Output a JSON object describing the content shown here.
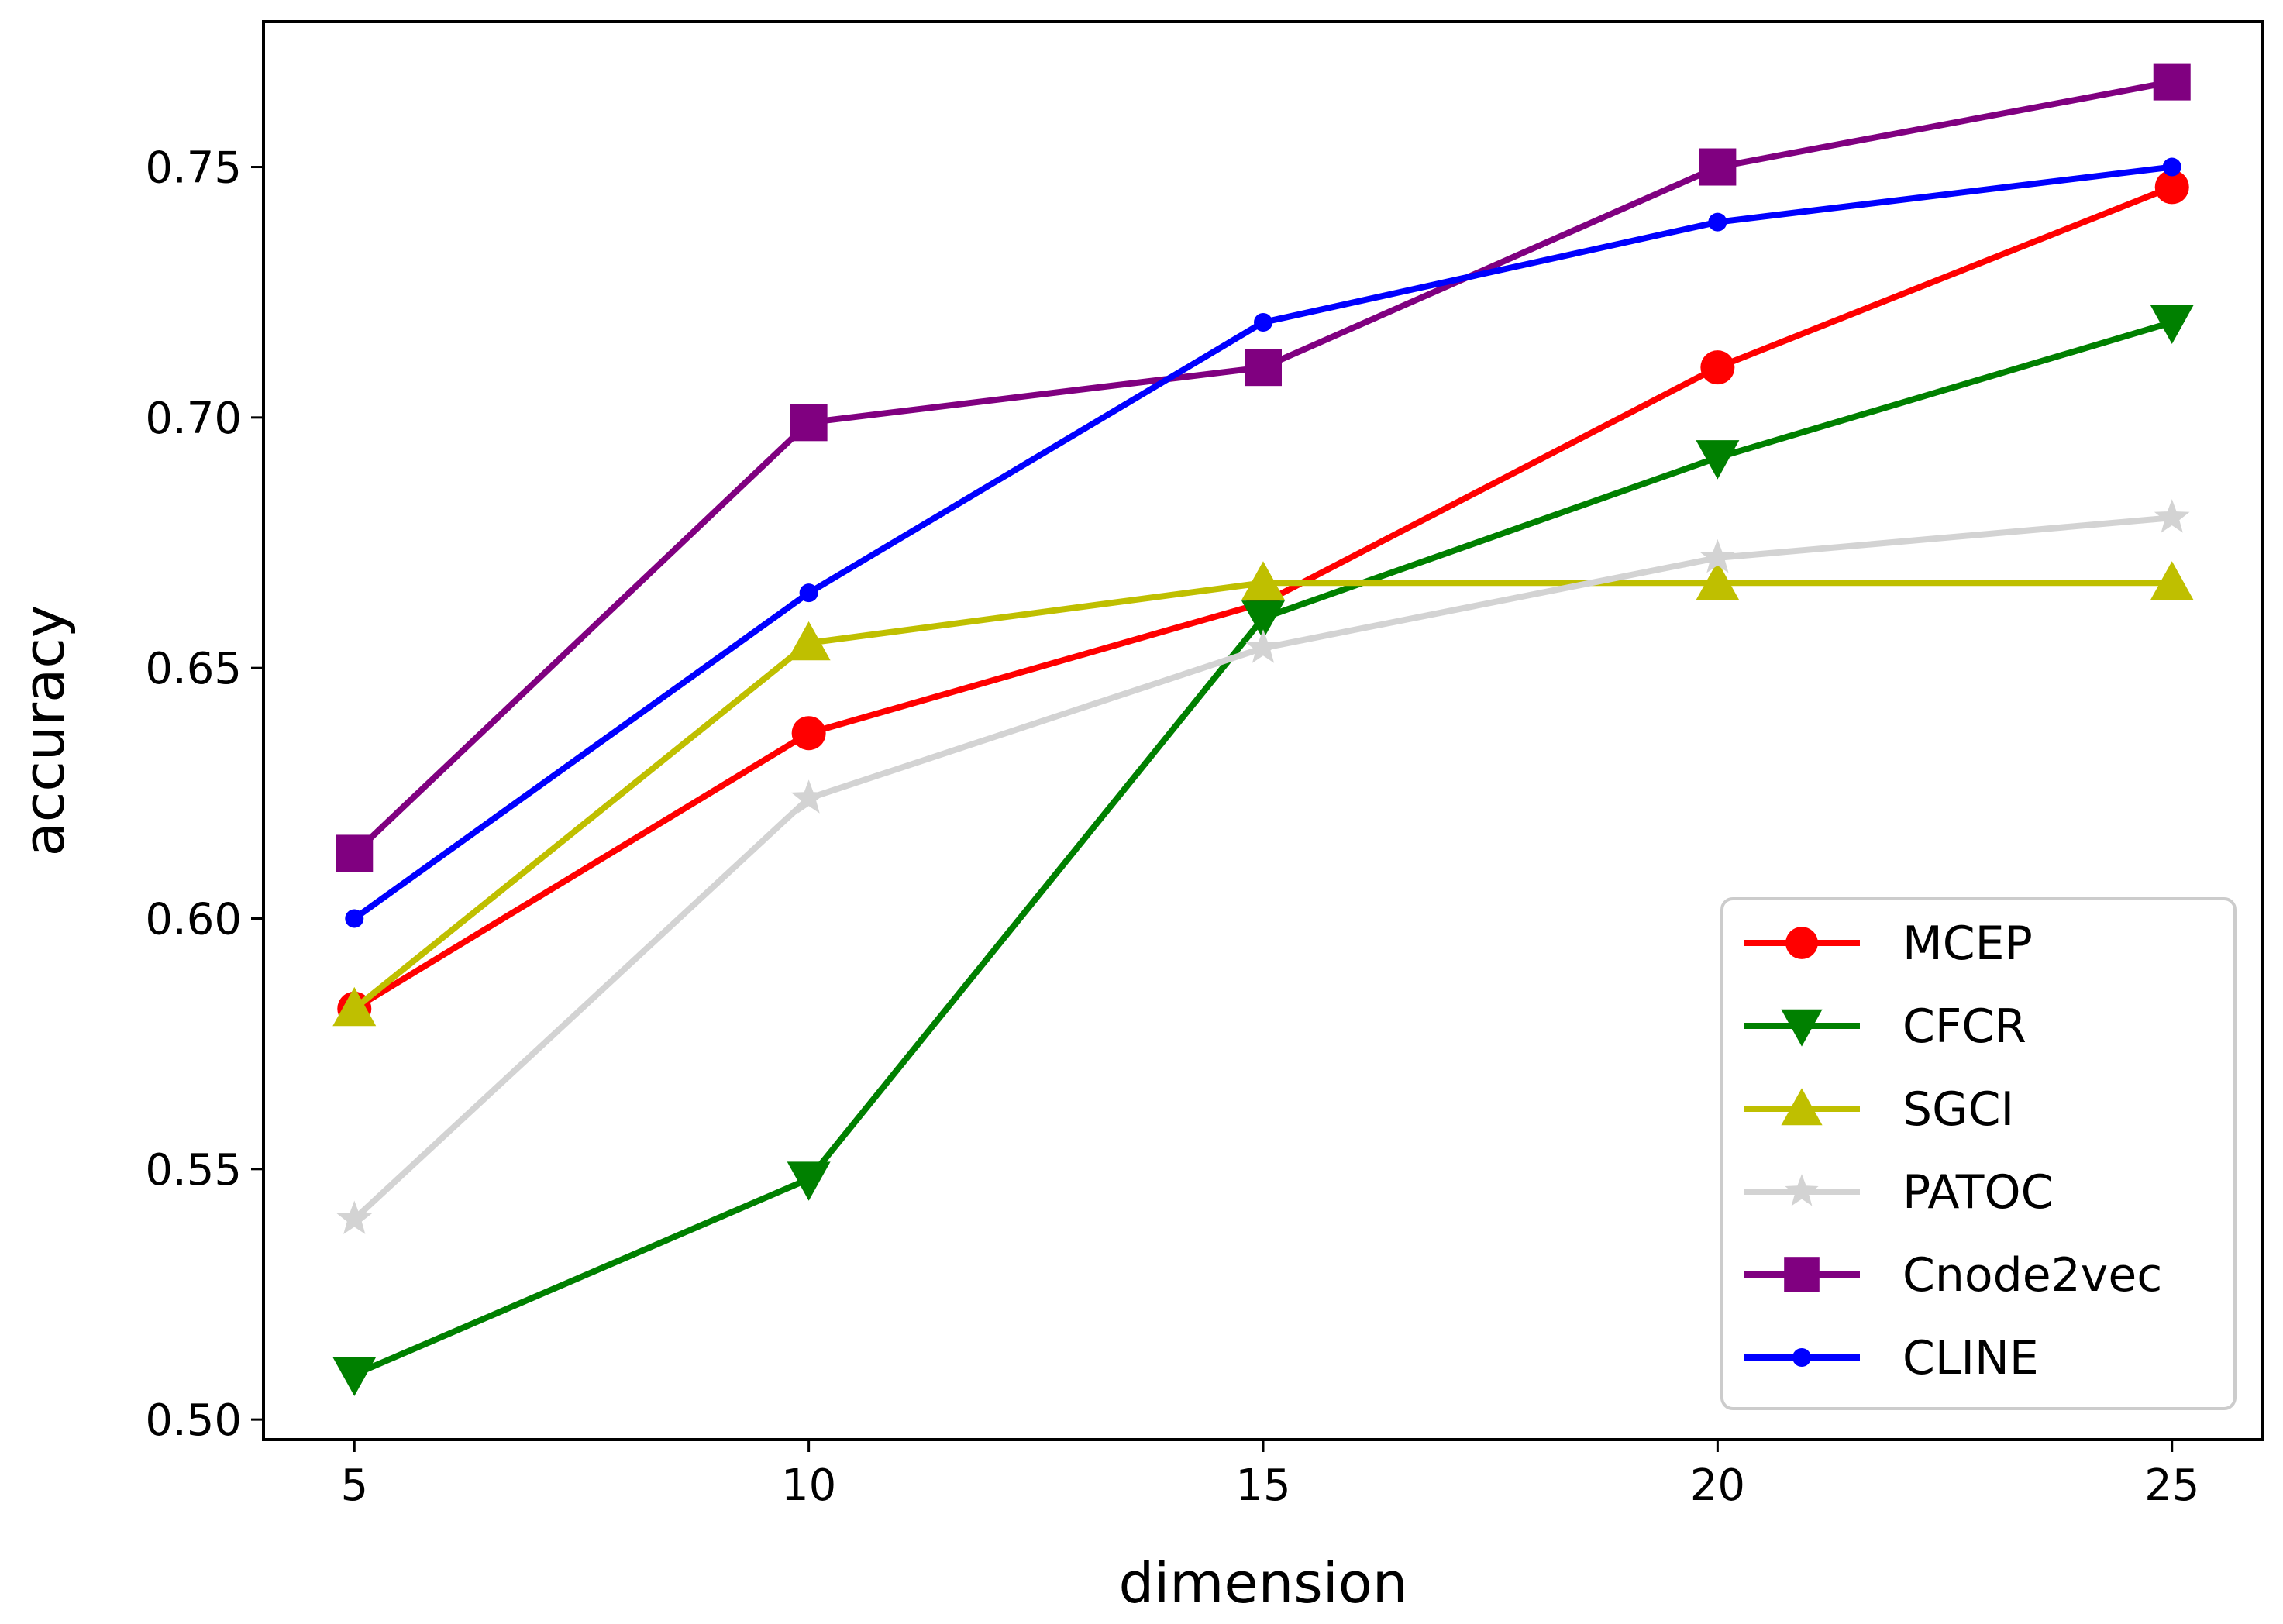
{
  "chart_data": {
    "type": "line",
    "title": "",
    "xlabel": "dimension",
    "ylabel": "accuracy",
    "x": [
      5,
      10,
      15,
      20,
      25
    ],
    "xlim": [
      4,
      26
    ],
    "ylim": [
      0.496,
      0.779
    ],
    "xticks": [
      5,
      10,
      15,
      20,
      25
    ],
    "xtick_labels": [
      "5",
      "10",
      "15",
      "20",
      "25"
    ],
    "yticks": [
      0.5,
      0.55,
      0.6,
      0.65,
      0.7,
      0.75
    ],
    "ytick_labels": [
      "0.50",
      "0.55",
      "0.60",
      "0.65",
      "0.70",
      "0.75"
    ],
    "grid": false,
    "legend_position": "lower-right",
    "series": [
      {
        "name": "MCEP",
        "color": "#ff0000",
        "marker": "circle",
        "values": [
          0.582,
          0.637,
          0.663,
          0.71,
          0.746
        ]
      },
      {
        "name": "CFCR",
        "color": "#008000",
        "marker": "triangle-down",
        "values": [
          0.509,
          0.548,
          0.66,
          0.692,
          0.719
        ]
      },
      {
        "name": "SGCI",
        "color": "#bfbf00",
        "marker": "triangle-up",
        "values": [
          0.582,
          0.655,
          0.667,
          0.667,
          0.667
        ]
      },
      {
        "name": "PATOC",
        "color": "#d3d3d3",
        "marker": "star",
        "values": [
          0.54,
          0.624,
          0.654,
          0.672,
          0.68
        ]
      },
      {
        "name": "Cnode2vec",
        "color": "#800080",
        "marker": "square",
        "values": [
          0.613,
          0.699,
          0.71,
          0.75,
          0.767
        ]
      },
      {
        "name": "CLINE",
        "color": "#0000ff",
        "marker": "point",
        "values": [
          0.6,
          0.665,
          0.719,
          0.739,
          0.75
        ]
      }
    ]
  }
}
